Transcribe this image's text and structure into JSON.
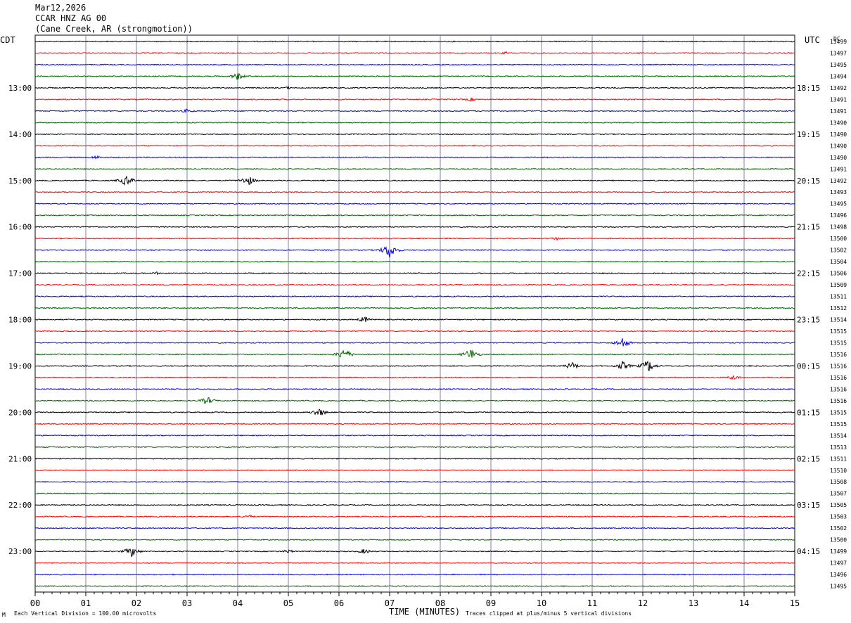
{
  "header": {
    "date": "Mar12,2026",
    "station": "CCAR HNZ AG 00",
    "location": "(Cane Creek, AR (strongmotion))"
  },
  "left_label": "CDT",
  "right_label": "UTC",
  "dc_label": "DC",
  "colors": {
    "black": "#000000",
    "red": "#ff0000",
    "blue": "#0000ff",
    "green": "#006400",
    "grid": "#8080a0"
  },
  "footer": {
    "left": "Each Vertical Division =  100.00 microvolts",
    "xlabel": "TIME (MINUTES)",
    "right": "Traces clipped at plus/minus 5 vertical divisions",
    "corner": "M"
  },
  "chart_data": {
    "type": "line",
    "xlabel": "TIME (MINUTES)",
    "xlim": [
      0,
      15
    ],
    "x_ticks": [
      "00",
      "01",
      "02",
      "03",
      "04",
      "05",
      "06",
      "07",
      "08",
      "09",
      "10",
      "11",
      "12",
      "13",
      "14",
      "15"
    ],
    "lines_per_hour": 4,
    "minutes_per_line": 15,
    "left_hour_labels": [
      {
        "line": 4,
        "label": "13:00"
      },
      {
        "line": 8,
        "label": "14:00"
      },
      {
        "line": 12,
        "label": "15:00"
      },
      {
        "line": 16,
        "label": "16:00"
      },
      {
        "line": 20,
        "label": "17:00"
      },
      {
        "line": 24,
        "label": "18:00"
      },
      {
        "line": 28,
        "label": "19:00"
      },
      {
        "line": 32,
        "label": "20:00"
      },
      {
        "line": 36,
        "label": "21:00"
      },
      {
        "line": 40,
        "label": "22:00"
      },
      {
        "line": 44,
        "label": "23:00"
      }
    ],
    "right_hour_labels": [
      {
        "line": 4,
        "label": "18:15"
      },
      {
        "line": 8,
        "label": "19:15"
      },
      {
        "line": 12,
        "label": "20:15"
      },
      {
        "line": 16,
        "label": "21:15"
      },
      {
        "line": 20,
        "label": "22:15"
      },
      {
        "line": 24,
        "label": "23:15"
      },
      {
        "line": 28,
        "label": "00:15"
      },
      {
        "line": 32,
        "label": "01:15"
      },
      {
        "line": 36,
        "label": "02:15"
      },
      {
        "line": 40,
        "label": "03:15"
      },
      {
        "line": 44,
        "label": "04:15"
      }
    ],
    "dc_values": [
      "13499",
      "13497",
      "13495",
      "13494",
      "13492",
      "13491",
      "13491",
      "13490",
      "13490",
      "13490",
      "13490",
      "13491",
      "13492",
      "13493",
      "13495",
      "13496",
      "13498",
      "13500",
      "13502",
      "13504",
      "13506",
      "13509",
      "13511",
      "13512",
      "13514",
      "13515",
      "13515",
      "13516",
      "13516",
      "13516",
      "13516",
      "13516",
      "13515",
      "13515",
      "13514",
      "13513",
      "13511",
      "13510",
      "13508",
      "13507",
      "13505",
      "13503",
      "13502",
      "13500",
      "13499",
      "13497",
      "13496",
      "13495"
    ],
    "events": [
      {
        "line": 1,
        "minute": 9.3,
        "amp": 2
      },
      {
        "line": 3,
        "minute": 4.0,
        "amp": 6
      },
      {
        "line": 4,
        "minute": 5.0,
        "amp": 2
      },
      {
        "line": 5,
        "minute": 8.6,
        "amp": 3
      },
      {
        "line": 6,
        "minute": 3.0,
        "amp": 3
      },
      {
        "line": 10,
        "minute": 1.2,
        "amp": 3
      },
      {
        "line": 12,
        "minute": 1.8,
        "amp": 8
      },
      {
        "line": 12,
        "minute": 4.2,
        "amp": 8
      },
      {
        "line": 17,
        "minute": 10.3,
        "amp": 3
      },
      {
        "line": 18,
        "minute": 7.0,
        "amp": 12
      },
      {
        "line": 20,
        "minute": 2.4,
        "amp": 2
      },
      {
        "line": 24,
        "minute": 6.5,
        "amp": 5
      },
      {
        "line": 26,
        "minute": 11.6,
        "amp": 8
      },
      {
        "line": 27,
        "minute": 6.1,
        "amp": 9
      },
      {
        "line": 27,
        "minute": 8.6,
        "amp": 9
      },
      {
        "line": 28,
        "minute": 10.6,
        "amp": 6
      },
      {
        "line": 28,
        "minute": 11.6,
        "amp": 7
      },
      {
        "line": 28,
        "minute": 12.1,
        "amp": 10
      },
      {
        "line": 29,
        "minute": 13.8,
        "amp": 4
      },
      {
        "line": 31,
        "minute": 3.4,
        "amp": 6
      },
      {
        "line": 32,
        "minute": 5.6,
        "amp": 7
      },
      {
        "line": 41,
        "minute": 4.2,
        "amp": 3
      },
      {
        "line": 44,
        "minute": 1.9,
        "amp": 8
      },
      {
        "line": 44,
        "minute": 5.0,
        "amp": 3
      },
      {
        "line": 44,
        "minute": 6.5,
        "amp": 4
      }
    ]
  }
}
